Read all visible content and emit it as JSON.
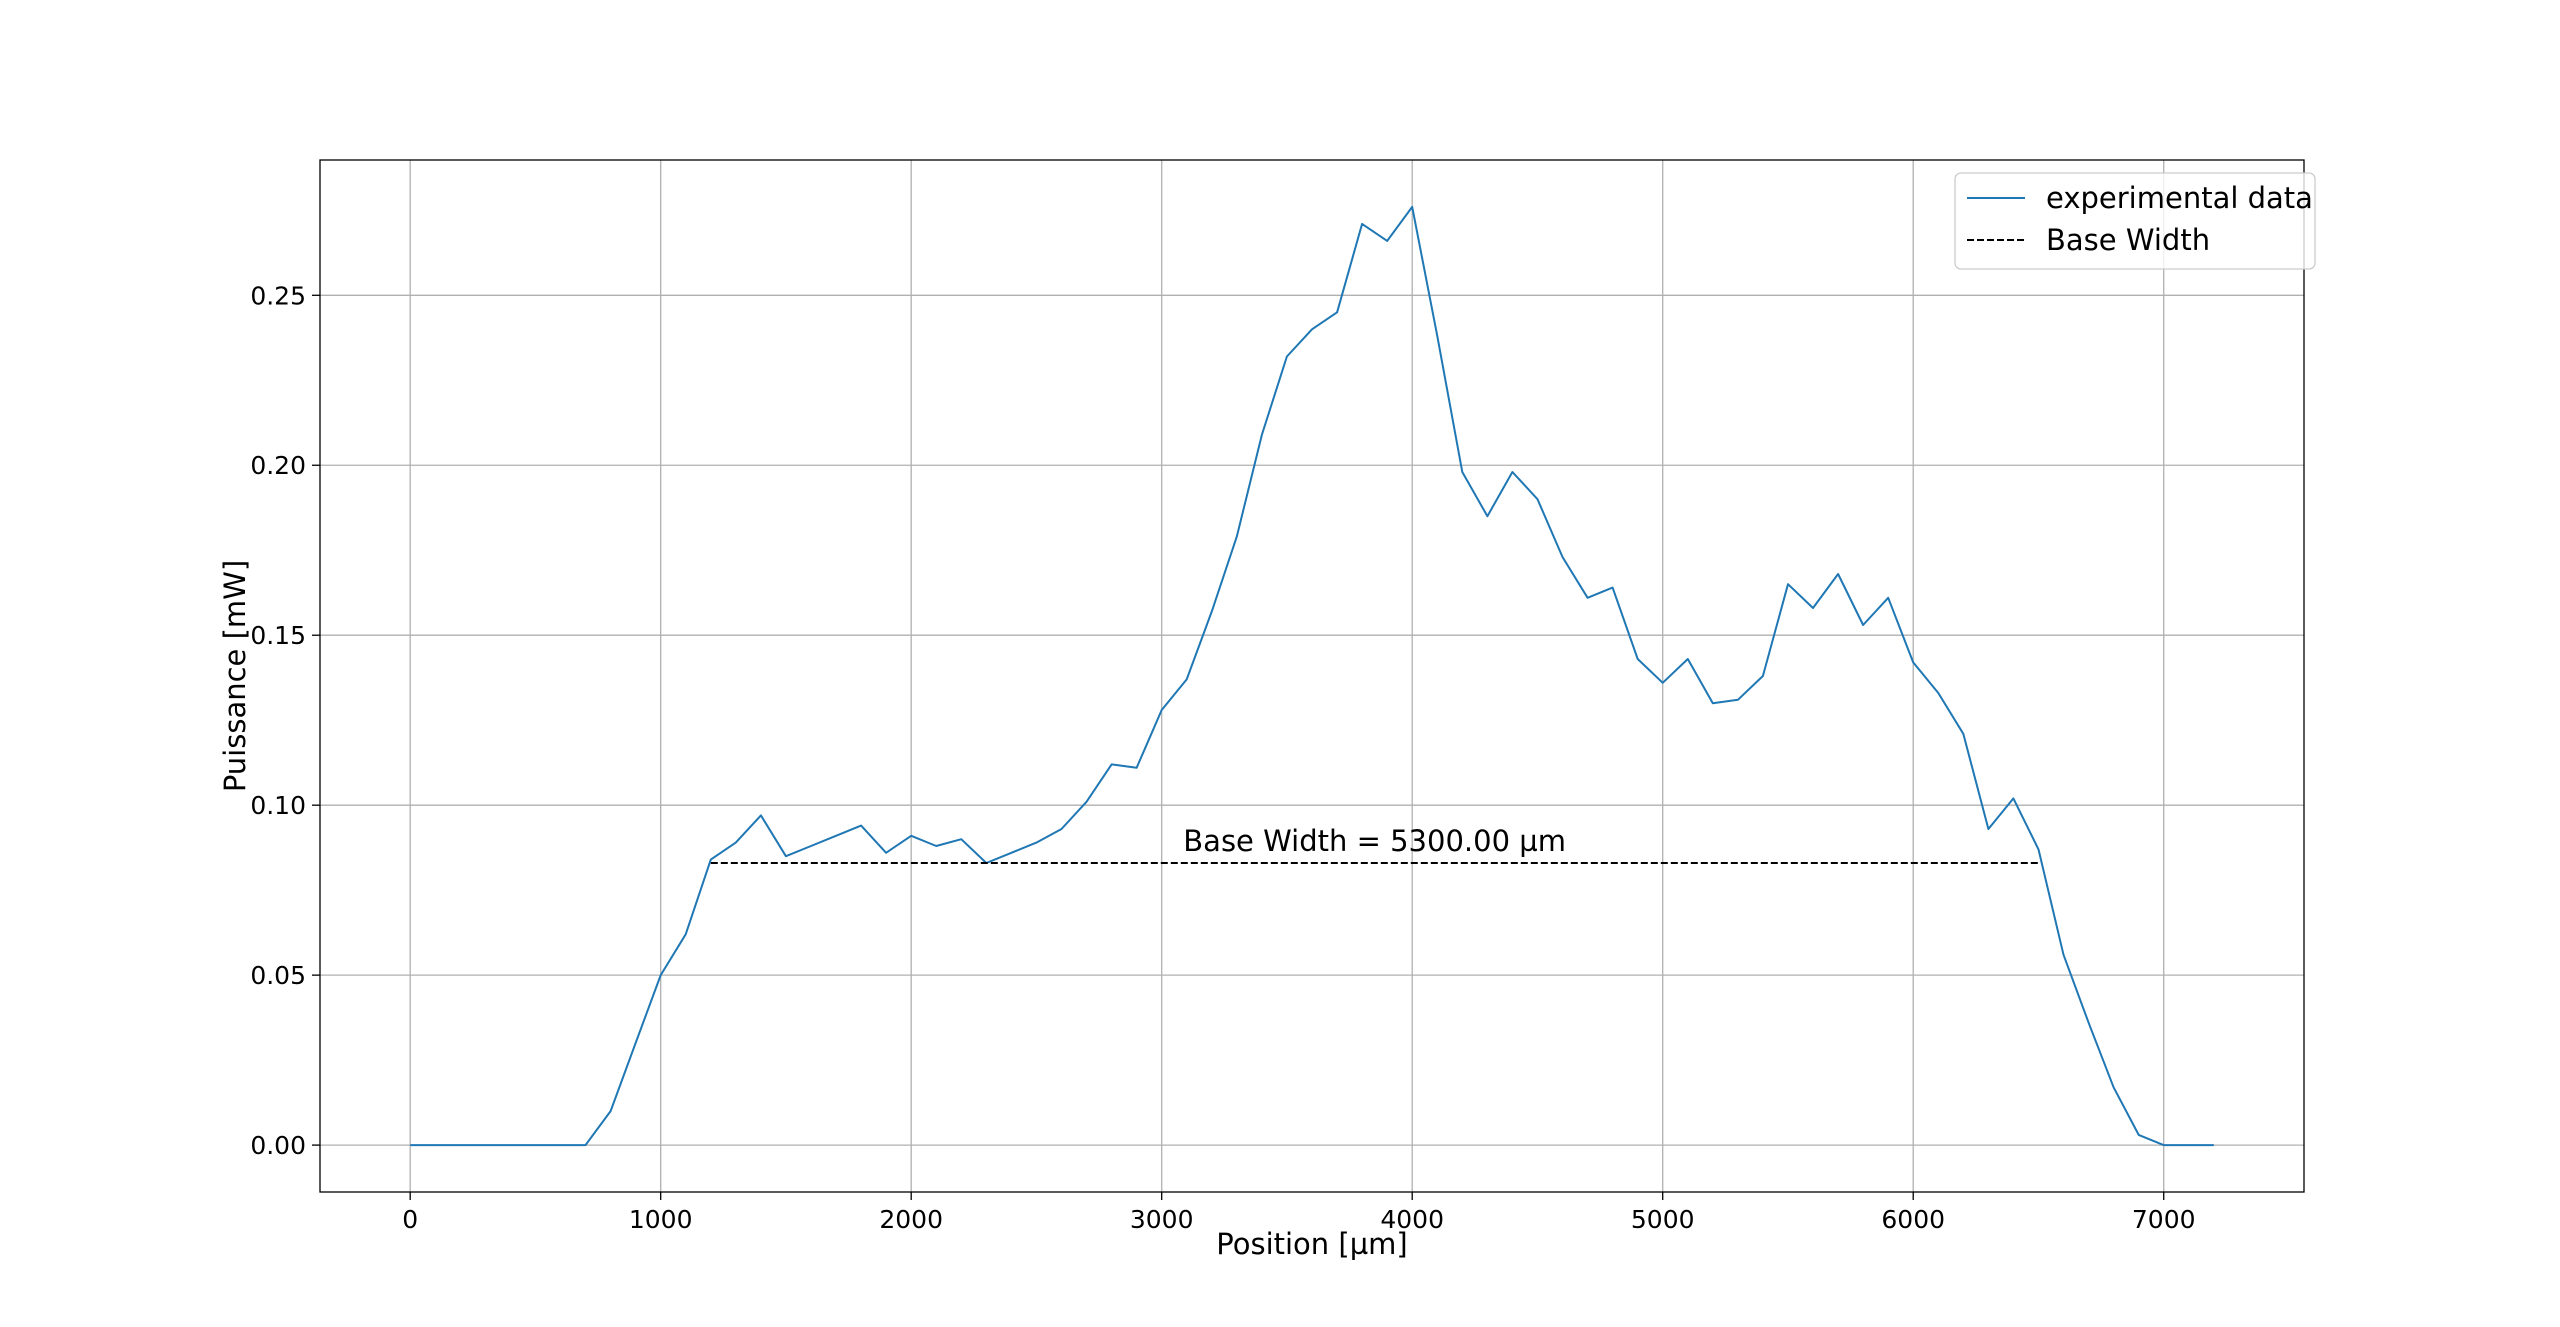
{
  "chart_data": {
    "type": "line",
    "xlabel": "Position [µm]",
    "ylabel": "Puissance [mW]",
    "xlim": [
      -360,
      7560
    ],
    "ylim": [
      -0.0138,
      0.2898
    ],
    "xticks": [
      0,
      1000,
      2000,
      3000,
      4000,
      5000,
      6000,
      7000
    ],
    "yticks": [
      0.0,
      0.05,
      0.1,
      0.15,
      0.2,
      0.25
    ],
    "xtick_labels": [
      "0",
      "1000",
      "2000",
      "3000",
      "4000",
      "5000",
      "6000",
      "7000"
    ],
    "ytick_labels": [
      "0.00",
      "0.05",
      "0.10",
      "0.15",
      "0.20",
      "0.25"
    ],
    "grid": true,
    "legend_placement": "top-right",
    "series": [
      {
        "name": "experimental data",
        "color": "#1f77b4",
        "style": "solid",
        "x": [
          0,
          100,
          200,
          300,
          400,
          500,
          600,
          700,
          800,
          900,
          1000,
          1100,
          1200,
          1300,
          1400,
          1500,
          1600,
          1700,
          1800,
          1900,
          2000,
          2100,
          2200,
          2300,
          2400,
          2500,
          2600,
          2700,
          2800,
          2900,
          3000,
          3100,
          3200,
          3300,
          3400,
          3500,
          3600,
          3700,
          3800,
          3900,
          4000,
          4100,
          4200,
          4300,
          4400,
          4500,
          4600,
          4700,
          4800,
          4900,
          5000,
          5100,
          5200,
          5300,
          5400,
          5500,
          5600,
          5700,
          5800,
          5900,
          6000,
          6100,
          6200,
          6300,
          6400,
          6500,
          6600,
          6700,
          6800,
          6900,
          7000,
          7100,
          7200
        ],
        "y": [
          0,
          0,
          0,
          0,
          0,
          0,
          0,
          0,
          0.01,
          0.03,
          0.05,
          0.062,
          0.084,
          0.089,
          0.097,
          0.085,
          0.088,
          0.091,
          0.094,
          0.086,
          0.091,
          0.088,
          0.09,
          0.083,
          0.086,
          0.089,
          0.093,
          0.101,
          0.112,
          0.111,
          0.128,
          0.137,
          0.157,
          0.179,
          0.209,
          0.232,
          0.24,
          0.245,
          0.271,
          0.266,
          0.276,
          0.238,
          0.198,
          0.185,
          0.198,
          0.19,
          0.173,
          0.161,
          0.164,
          0.143,
          0.136,
          0.143,
          0.13,
          0.131,
          0.138,
          0.165,
          0.158,
          0.168,
          0.153,
          0.161,
          0.142,
          0.133,
          0.121,
          0.093,
          0.102,
          0.087,
          0.056,
          0.036,
          0.017,
          0.003,
          0,
          0,
          0
        ]
      },
      {
        "name": "Base Width",
        "color": "#000000",
        "style": "dashed",
        "x": [
          1200,
          6500
        ],
        "y": [
          0.083,
          0.083
        ]
      }
    ],
    "annotations": [
      {
        "text": "Base Width = 5300.00 µm",
        "x": 3850,
        "y": 0.0895
      }
    ]
  }
}
